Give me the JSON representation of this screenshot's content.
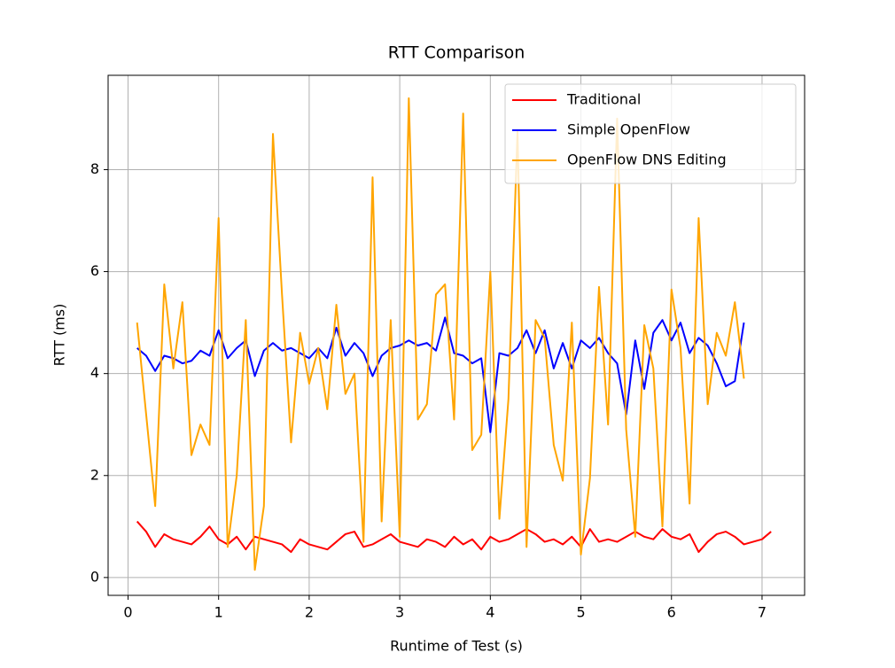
{
  "chart_data": {
    "type": "line",
    "title": "RTT Comparison",
    "x_label": "Runtime of Test (s)",
    "y_label": "RTT (ms)",
    "xlim": [
      -0.22,
      7.47
    ],
    "ylim": [
      -0.35,
      9.85
    ],
    "xticks": [
      0,
      1,
      2,
      3,
      4,
      5,
      6,
      7
    ],
    "yticks": [
      0,
      2,
      4,
      6,
      8
    ],
    "grid": true,
    "legend": "upper right",
    "series": [
      {
        "name": "Traditional",
        "color": "#ff0000",
        "x": [
          0.1,
          0.2,
          0.3,
          0.4,
          0.5,
          0.6,
          0.7,
          0.8,
          0.9,
          1.0,
          1.1,
          1.2,
          1.3,
          1.4,
          1.5,
          1.6,
          1.7,
          1.8,
          1.9,
          2.0,
          2.1,
          2.2,
          2.3,
          2.4,
          2.5,
          2.6,
          2.7,
          2.8,
          2.9,
          3.0,
          3.1,
          3.2,
          3.3,
          3.4,
          3.5,
          3.6,
          3.7,
          3.8,
          3.9,
          4.0,
          4.1,
          4.2,
          4.3,
          4.4,
          4.5,
          4.6,
          4.7,
          4.8,
          4.9,
          5.0,
          5.1,
          5.2,
          5.3,
          5.4,
          5.5,
          5.6,
          5.7,
          5.8,
          5.9,
          6.0,
          6.1,
          6.2,
          6.3,
          6.4,
          6.5,
          6.6,
          6.7,
          6.8,
          6.9,
          7.0,
          7.1
        ],
        "values": [
          1.1,
          0.9,
          0.6,
          0.85,
          0.75,
          0.7,
          0.65,
          0.8,
          1.0,
          0.75,
          0.65,
          0.8,
          0.55,
          0.8,
          0.75,
          0.7,
          0.65,
          0.5,
          0.75,
          0.65,
          0.6,
          0.55,
          0.7,
          0.85,
          0.9,
          0.6,
          0.65,
          0.75,
          0.85,
          0.7,
          0.65,
          0.6,
          0.75,
          0.7,
          0.6,
          0.8,
          0.65,
          0.75,
          0.55,
          0.8,
          0.7,
          0.75,
          0.85,
          0.95,
          0.85,
          0.7,
          0.75,
          0.65,
          0.8,
          0.6,
          0.95,
          0.7,
          0.75,
          0.7,
          0.8,
          0.9,
          0.8,
          0.75,
          0.95,
          0.8,
          0.75,
          0.85,
          0.5,
          0.7,
          0.85,
          0.9,
          0.8,
          0.65,
          0.7,
          0.75,
          0.9
        ]
      },
      {
        "name": "Simple OpenFlow",
        "color": "#0000ff",
        "x": [
          0.1,
          0.2,
          0.3,
          0.4,
          0.5,
          0.6,
          0.7,
          0.8,
          0.9,
          1.0,
          1.1,
          1.2,
          1.3,
          1.4,
          1.5,
          1.6,
          1.7,
          1.8,
          1.9,
          2.0,
          2.1,
          2.2,
          2.3,
          2.4,
          2.5,
          2.6,
          2.7,
          2.8,
          2.9,
          3.0,
          3.1,
          3.2,
          3.3,
          3.4,
          3.5,
          3.6,
          3.7,
          3.8,
          3.9,
          4.0,
          4.1,
          4.2,
          4.3,
          4.4,
          4.5,
          4.6,
          4.7,
          4.8,
          4.9,
          5.0,
          5.1,
          5.2,
          5.3,
          5.4,
          5.5,
          5.6,
          5.7,
          5.8,
          5.9,
          6.0,
          6.1,
          6.2,
          6.3,
          6.4,
          6.5,
          6.6,
          6.7,
          6.8
        ],
        "values": [
          4.5,
          4.35,
          4.05,
          4.35,
          4.3,
          4.2,
          4.25,
          4.45,
          4.35,
          4.85,
          4.3,
          4.5,
          4.65,
          3.95,
          4.45,
          4.6,
          4.45,
          4.5,
          4.4,
          4.3,
          4.5,
          4.3,
          4.9,
          4.35,
          4.6,
          4.4,
          3.95,
          4.35,
          4.5,
          4.55,
          4.65,
          4.55,
          4.6,
          4.45,
          5.1,
          4.4,
          4.35,
          4.2,
          4.3,
          2.85,
          4.4,
          4.35,
          4.5,
          4.85,
          4.4,
          4.85,
          4.1,
          4.6,
          4.1,
          4.65,
          4.5,
          4.7,
          4.4,
          4.2,
          3.2,
          4.65,
          3.7,
          4.8,
          5.05,
          4.65,
          5.0,
          4.4,
          4.7,
          4.55,
          4.2,
          3.75,
          3.85,
          5.0
        ]
      },
      {
        "name": "OpenFlow DNS Editing",
        "color": "#ffa500",
        "x": [
          0.1,
          0.2,
          0.3,
          0.4,
          0.5,
          0.6,
          0.7,
          0.8,
          0.9,
          1.0,
          1.1,
          1.2,
          1.3,
          1.4,
          1.5,
          1.6,
          1.7,
          1.8,
          1.9,
          2.0,
          2.1,
          2.2,
          2.3,
          2.4,
          2.5,
          2.6,
          2.7,
          2.8,
          2.9,
          3.0,
          3.1,
          3.2,
          3.3,
          3.4,
          3.5,
          3.6,
          3.7,
          3.8,
          3.9,
          4.0,
          4.1,
          4.2,
          4.3,
          4.4,
          4.5,
          4.6,
          4.7,
          4.8,
          4.9,
          5.0,
          5.1,
          5.2,
          5.3,
          5.4,
          5.5,
          5.6,
          5.7,
          5.8,
          5.9,
          6.0,
          6.1,
          6.2,
          6.3,
          6.4,
          6.5,
          6.6,
          6.7,
          6.8
        ],
        "values": [
          5.0,
          3.2,
          1.4,
          5.75,
          4.1,
          5.4,
          2.4,
          3.0,
          2.6,
          7.05,
          0.6,
          2.0,
          5.05,
          0.15,
          1.4,
          8.7,
          5.55,
          2.65,
          4.8,
          3.8,
          4.5,
          3.3,
          5.35,
          3.6,
          4.0,
          0.7,
          7.85,
          1.1,
          5.05,
          0.8,
          9.4,
          3.1,
          3.4,
          5.55,
          5.75,
          3.1,
          9.1,
          2.5,
          2.8,
          6.0,
          1.15,
          3.5,
          8.75,
          0.6,
          5.05,
          4.7,
          2.6,
          1.9,
          5.0,
          0.45,
          1.95,
          5.7,
          3.0,
          9.0,
          2.9,
          0.8,
          4.95,
          4.1,
          1.0,
          5.65,
          4.5,
          1.45,
          7.05,
          3.4,
          4.8,
          4.35,
          5.4,
          3.9
        ]
      }
    ]
  }
}
